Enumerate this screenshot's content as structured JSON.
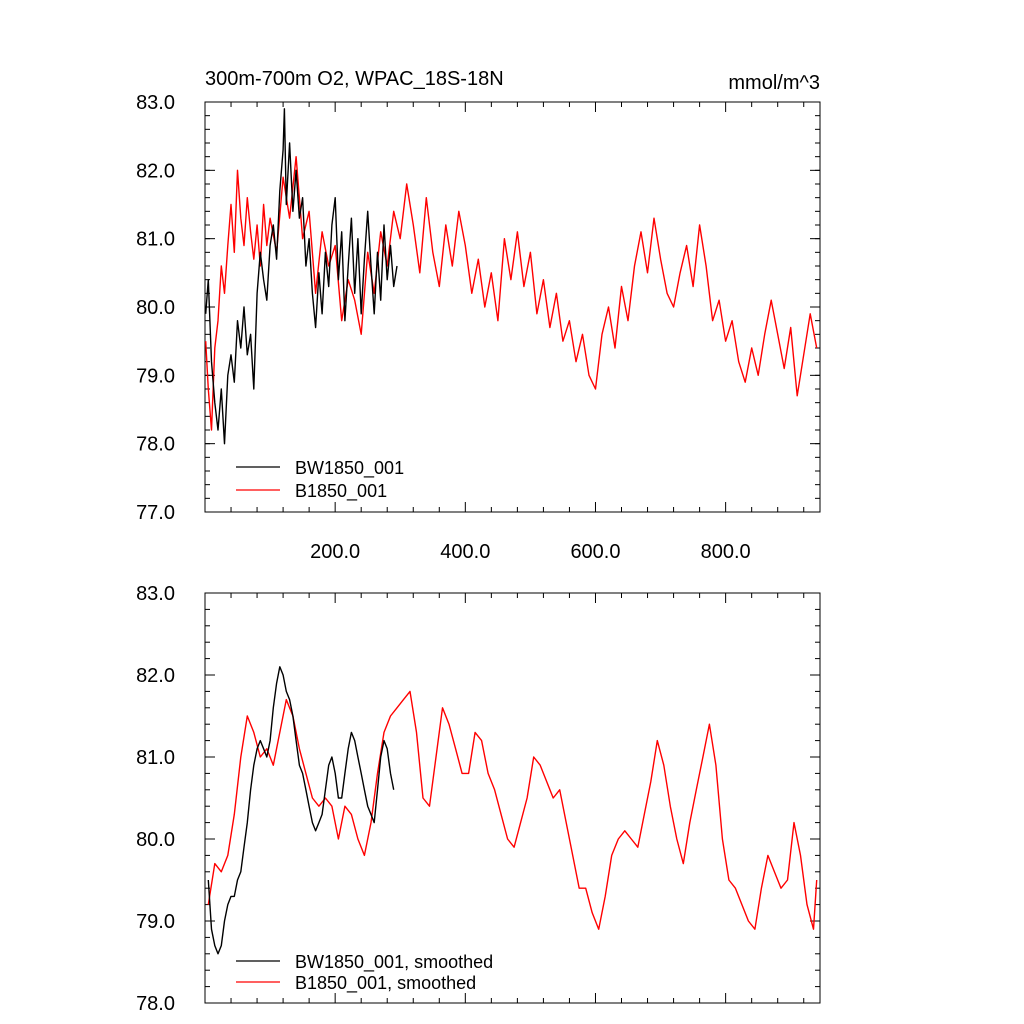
{
  "header": {
    "title": "300m-700m O2, WPAC_18S-18N",
    "units": "mmol/m^3"
  },
  "colors": {
    "bw": "#000000",
    "b": "#ff0000"
  },
  "chart_data": [
    {
      "type": "line",
      "panel": "top",
      "xlim": [
        0,
        945
      ],
      "ylim": [
        77.0,
        83.0
      ],
      "xticks": [
        200,
        400,
        600,
        800
      ],
      "xtick_labels": [
        "200.0",
        "400.0",
        "600.0",
        "800.0"
      ],
      "yticks": [
        77,
        78,
        79,
        80,
        81,
        82,
        83
      ],
      "ytick_labels": [
        "77.0",
        "78.0",
        "79.0",
        "80.0",
        "81.0",
        "82.0",
        "83.0"
      ],
      "legend_position": "bottom-left",
      "series": [
        {
          "name": "BW1850_001",
          "color": "#000000",
          "x": [
            1,
            5,
            10,
            15,
            20,
            25,
            30,
            35,
            40,
            45,
            50,
            55,
            60,
            65,
            70,
            75,
            80,
            85,
            90,
            95,
            100,
            105,
            110,
            115,
            120,
            122,
            125,
            130,
            135,
            140,
            145,
            150,
            155,
            160,
            165,
            170,
            175,
            180,
            185,
            190,
            195,
            200,
            205,
            210,
            215,
            220,
            225,
            230,
            235,
            240,
            245,
            250,
            255,
            260,
            265,
            270,
            275,
            280,
            285,
            290,
            295
          ],
          "values": [
            79.9,
            80.4,
            79.2,
            78.6,
            78.2,
            78.8,
            78.0,
            79.0,
            79.3,
            78.9,
            79.8,
            79.4,
            80.0,
            79.3,
            79.6,
            78.8,
            80.2,
            80.8,
            80.4,
            80.1,
            80.9,
            81.2,
            80.7,
            81.7,
            82.3,
            82.9,
            81.5,
            82.4,
            81.4,
            82.0,
            81.3,
            81.6,
            80.6,
            81.0,
            80.2,
            79.7,
            80.5,
            79.9,
            80.8,
            80.3,
            81.2,
            81.6,
            80.4,
            81.1,
            79.8,
            80.6,
            81.3,
            80.2,
            81.0,
            79.9,
            80.7,
            81.4,
            80.6,
            79.9,
            80.8,
            80.1,
            81.2,
            80.4,
            80.9,
            80.3,
            80.6
          ]
        },
        {
          "name": "B1850_001",
          "color": "#ff0000",
          "x": [
            1,
            5,
            10,
            15,
            20,
            25,
            30,
            35,
            40,
            45,
            50,
            55,
            60,
            65,
            70,
            75,
            80,
            85,
            90,
            95,
            100,
            110,
            120,
            130,
            140,
            150,
            160,
            170,
            180,
            190,
            200,
            210,
            220,
            230,
            240,
            250,
            260,
            270,
            280,
            290,
            300,
            310,
            320,
            330,
            340,
            350,
            360,
            370,
            380,
            390,
            400,
            410,
            420,
            430,
            440,
            450,
            460,
            470,
            480,
            490,
            500,
            510,
            520,
            530,
            540,
            550,
            560,
            570,
            580,
            590,
            600,
            610,
            620,
            630,
            640,
            650,
            660,
            670,
            680,
            690,
            700,
            710,
            720,
            730,
            740,
            750,
            760,
            770,
            780,
            790,
            800,
            810,
            820,
            830,
            840,
            850,
            860,
            870,
            880,
            890,
            900,
            910,
            920,
            930,
            940
          ],
          "values": [
            79.5,
            78.8,
            78.2,
            79.4,
            79.8,
            80.6,
            80.2,
            80.9,
            81.5,
            80.8,
            82.0,
            81.3,
            80.9,
            81.6,
            81.1,
            80.7,
            81.2,
            80.6,
            81.5,
            80.9,
            81.3,
            80.8,
            81.9,
            81.3,
            82.2,
            81.0,
            81.4,
            80.2,
            81.1,
            80.6,
            80.9,
            79.8,
            80.4,
            80.1,
            79.6,
            80.8,
            80.2,
            81.1,
            80.6,
            81.4,
            81.0,
            81.8,
            81.2,
            80.5,
            81.6,
            80.8,
            80.3,
            81.2,
            80.6,
            81.4,
            80.9,
            80.2,
            80.7,
            80.0,
            80.5,
            79.8,
            81.0,
            80.4,
            81.1,
            80.3,
            80.8,
            79.9,
            80.4,
            79.7,
            80.2,
            79.5,
            79.8,
            79.2,
            79.6,
            79.0,
            78.8,
            79.6,
            80.0,
            79.4,
            80.3,
            79.8,
            80.6,
            81.1,
            80.5,
            81.3,
            80.7,
            80.2,
            80.0,
            80.5,
            80.9,
            80.3,
            81.2,
            80.6,
            79.8,
            80.1,
            79.5,
            79.8,
            79.2,
            78.9,
            79.4,
            79.0,
            79.6,
            80.1,
            79.6,
            79.1,
            79.7,
            78.7,
            79.3,
            79.9,
            79.4
          ]
        }
      ]
    },
    {
      "type": "line",
      "panel": "bottom",
      "xlim": [
        0,
        945
      ],
      "ylim": [
        78.0,
        83.0
      ],
      "xticks": [
        200,
        400,
        600,
        800
      ],
      "yticks": [
        78,
        79,
        80,
        81,
        82,
        83
      ],
      "ytick_labels": [
        "78.0",
        "79.0",
        "80.0",
        "81.0",
        "82.0",
        "83.0"
      ],
      "legend_position": "bottom-left",
      "series": [
        {
          "name": "BW1850_001, smoothed",
          "color": "#000000",
          "x": [
            5,
            10,
            15,
            20,
            25,
            30,
            35,
            40,
            45,
            50,
            55,
            60,
            65,
            70,
            75,
            80,
            85,
            90,
            95,
            100,
            105,
            110,
            115,
            120,
            125,
            130,
            135,
            140,
            145,
            150,
            155,
            160,
            165,
            170,
            175,
            180,
            185,
            190,
            195,
            200,
            205,
            210,
            215,
            220,
            225,
            230,
            235,
            240,
            245,
            250,
            255,
            260,
            265,
            270,
            275,
            280,
            285,
            290
          ],
          "values": [
            79.5,
            78.9,
            78.7,
            78.6,
            78.7,
            79.0,
            79.2,
            79.3,
            79.3,
            79.5,
            79.6,
            79.9,
            80.2,
            80.6,
            80.9,
            81.1,
            81.2,
            81.1,
            81.0,
            81.2,
            81.6,
            81.9,
            82.1,
            82.0,
            81.8,
            81.7,
            81.5,
            81.2,
            80.9,
            80.8,
            80.6,
            80.4,
            80.2,
            80.1,
            80.2,
            80.3,
            80.6,
            80.9,
            81.0,
            80.8,
            80.5,
            80.5,
            80.8,
            81.1,
            81.3,
            81.2,
            81.0,
            80.8,
            80.6,
            80.4,
            80.3,
            80.2,
            80.6,
            81.0,
            81.2,
            81.1,
            80.8,
            80.6
          ]
        },
        {
          "name": "B1850_001, smoothed",
          "color": "#ff0000",
          "x": [
            5,
            15,
            25,
            35,
            45,
            55,
            65,
            75,
            85,
            95,
            105,
            115,
            125,
            135,
            145,
            155,
            165,
            175,
            185,
            195,
            205,
            215,
            225,
            235,
            245,
            255,
            265,
            275,
            285,
            295,
            305,
            315,
            325,
            335,
            345,
            355,
            365,
            375,
            385,
            395,
            405,
            415,
            425,
            435,
            445,
            455,
            465,
            475,
            485,
            495,
            505,
            515,
            525,
            535,
            545,
            555,
            565,
            575,
            585,
            595,
            605,
            615,
            625,
            635,
            645,
            655,
            665,
            675,
            685,
            695,
            705,
            715,
            725,
            735,
            745,
            755,
            765,
            775,
            785,
            795,
            805,
            815,
            825,
            835,
            845,
            855,
            865,
            875,
            885,
            895,
            905,
            915,
            925,
            935,
            940
          ],
          "values": [
            79.2,
            79.7,
            79.6,
            79.8,
            80.3,
            81.0,
            81.5,
            81.3,
            81.0,
            81.1,
            80.9,
            81.3,
            81.7,
            81.5,
            81.1,
            80.8,
            80.5,
            80.4,
            80.5,
            80.4,
            80.0,
            80.4,
            80.3,
            80.0,
            79.8,
            80.2,
            80.8,
            81.3,
            81.5,
            81.6,
            81.7,
            81.8,
            81.3,
            80.5,
            80.4,
            81.0,
            81.6,
            81.4,
            81.1,
            80.8,
            80.8,
            81.3,
            81.2,
            80.8,
            80.6,
            80.3,
            80.0,
            79.9,
            80.2,
            80.5,
            81.0,
            80.9,
            80.7,
            80.5,
            80.6,
            80.2,
            79.8,
            79.4,
            79.4,
            79.1,
            78.9,
            79.3,
            79.8,
            80.0,
            80.1,
            80.0,
            79.9,
            80.3,
            80.7,
            81.2,
            80.9,
            80.4,
            80.0,
            79.7,
            80.2,
            80.6,
            81.0,
            81.4,
            80.9,
            80.0,
            79.5,
            79.4,
            79.2,
            79.0,
            78.9,
            79.4,
            79.8,
            79.6,
            79.4,
            79.5,
            80.2,
            79.8,
            79.2,
            78.9,
            79.5
          ]
        }
      ]
    }
  ]
}
